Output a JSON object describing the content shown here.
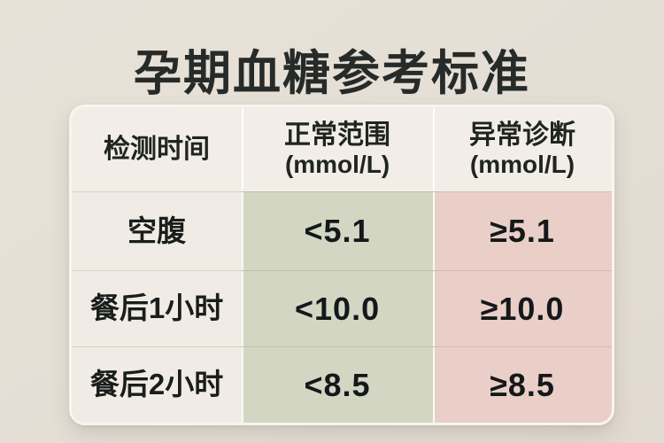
{
  "title": "孕期血糖参考标准",
  "colors": {
    "page_background": "#e4ded5",
    "header_background": "#f2eee7",
    "time_column_background": "#f0ece5",
    "normal_column_background": "#d2d6c3",
    "abnormal_column_background": "#e9cfc7",
    "text_dark": "#1b1e1c",
    "table_border": "#f8f5ef"
  },
  "table": {
    "headers": [
      {
        "label": "检测时间",
        "unit": ""
      },
      {
        "label": "正常范围",
        "unit": "(mmol/L)"
      },
      {
        "label": "异常诊断",
        "unit": "(mmol/L)"
      }
    ],
    "rows": [
      {
        "time": "空腹",
        "normal": "<5.1",
        "abnormal": "≥5.1"
      },
      {
        "time": "餐后1小时",
        "normal": "<10.0",
        "abnormal": "≥10.0"
      },
      {
        "time": "餐后2小时",
        "normal": "<8.5",
        "abnormal": "≥8.5"
      }
    ]
  },
  "chart_data": {
    "type": "table",
    "title": "孕期血糖参考标准",
    "columns": [
      "检测时间",
      "正常范围 (mmol/L)",
      "异常诊断 (mmol/L)"
    ],
    "rows": [
      [
        "空腹",
        "<5.1",
        "≥5.1"
      ],
      [
        "餐后1小时",
        "<10.0",
        "≥10.0"
      ],
      [
        "餐后2小时",
        "<8.5",
        "≥8.5"
      ]
    ]
  }
}
